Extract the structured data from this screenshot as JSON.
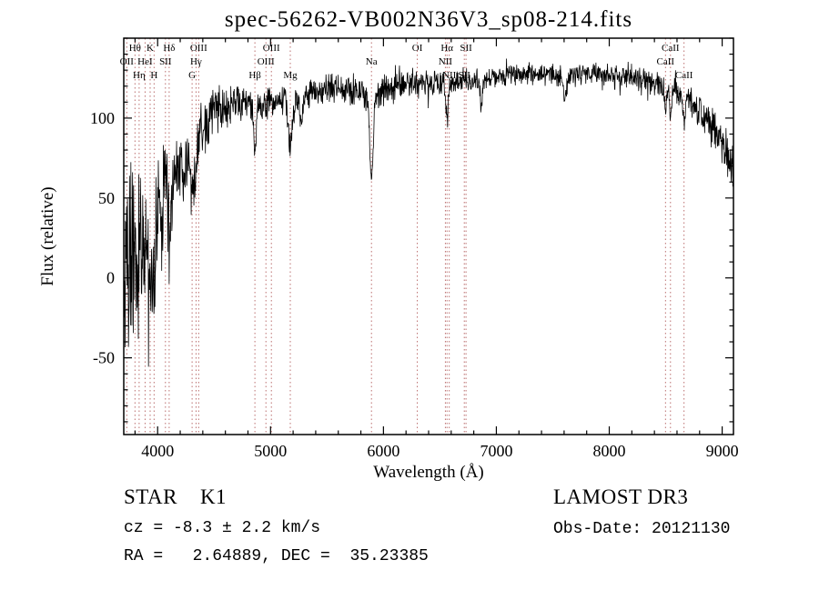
{
  "title": "spec-56262-VB002N36V3_sp08-214.fits",
  "footer": {
    "class_label": "STAR    K1",
    "survey": "LAMOST DR3",
    "cz": "cz = -8.3 ± 2.2 km/s",
    "obs_date": "Obs-Date: 20121130",
    "coords": "RA =   2.64889, DEC =  35.23385"
  },
  "chart_data": {
    "type": "line",
    "title": "spec-56262-VB002N36V3_sp08-214.fits",
    "xlabel": "Wavelength (Å)",
    "ylabel": "Flux (relative)",
    "xlim": [
      3700,
      9100
    ],
    "ylim": [
      -98,
      150
    ],
    "x_major_ticks": [
      4000,
      5000,
      6000,
      7000,
      8000,
      9000
    ],
    "x_minor_step": 200,
    "y_major_ticks": [
      -50,
      0,
      50,
      100
    ],
    "y_minor_step": 10,
    "grid": false,
    "legend": "none",
    "series_name": "flux",
    "series_color": "#000000",
    "marker_line_color": "#b46060",
    "marker_label_color": "#5e1f1f",
    "spectral_lines": [
      {
        "wavelength": 3727,
        "label": "OII",
        "row": 2
      },
      {
        "wavelength": 3799,
        "label": "Hθ",
        "row": 1
      },
      {
        "wavelength": 3836,
        "label": "Hη",
        "row": 3
      },
      {
        "wavelength": 3889,
        "label": "HeI",
        "row": 2
      },
      {
        "wavelength": 3934,
        "label": "K",
        "row": 1
      },
      {
        "wavelength": 3968,
        "label": "H",
        "row": 3
      },
      {
        "wavelength": 4069,
        "label": "SII",
        "row": 2
      },
      {
        "wavelength": 4102,
        "label": "Hδ",
        "row": 1
      },
      {
        "wavelength": 4305,
        "label": "G",
        "row": 3
      },
      {
        "wavelength": 4340,
        "label": "Hγ",
        "row": 2
      },
      {
        "wavelength": 4363,
        "label": "OIII",
        "row": 1
      },
      {
        "wavelength": 4861,
        "label": "Hβ",
        "row": 3
      },
      {
        "wavelength": 4959,
        "label": "OIII",
        "row": 2
      },
      {
        "wavelength": 5007,
        "label": "OIII",
        "row": 1
      },
      {
        "wavelength": 5175,
        "label": "Mg",
        "row": 3
      },
      {
        "wavelength": 5894,
        "label": "Na",
        "row": 2
      },
      {
        "wavelength": 6300,
        "label": "OI",
        "row": 1
      },
      {
        "wavelength": 6548,
        "label": "NII",
        "row": 2
      },
      {
        "wavelength": 6563,
        "label": "Hα",
        "row": 1
      },
      {
        "wavelength": 6583,
        "label": "NII",
        "row": 3
      },
      {
        "wavelength": 6716,
        "label": "SII",
        "row": 3
      },
      {
        "wavelength": 6731,
        "label": "SII",
        "row": 1
      },
      {
        "wavelength": 8498,
        "label": "CaII",
        "row": 2
      },
      {
        "wavelength": 8542,
        "label": "CaII",
        "row": 1
      },
      {
        "wavelength": 8662,
        "label": "CaII",
        "row": 3
      }
    ],
    "continuum": [
      [
        3700,
        10
      ],
      [
        3800,
        15
      ],
      [
        3900,
        25
      ],
      [
        4000,
        40
      ],
      [
        4100,
        55
      ],
      [
        4200,
        70
      ],
      [
        4300,
        80
      ],
      [
        4400,
        95
      ],
      [
        4500,
        105
      ],
      [
        4700,
        110
      ],
      [
        4900,
        108
      ],
      [
        5100,
        112
      ],
      [
        5300,
        115
      ],
      [
        5500,
        118
      ],
      [
        5700,
        118
      ],
      [
        5900,
        115
      ],
      [
        6100,
        120
      ],
      [
        6300,
        122
      ],
      [
        6500,
        122
      ],
      [
        6700,
        123
      ],
      [
        7000,
        126
      ],
      [
        7300,
        128
      ],
      [
        7600,
        126
      ],
      [
        7900,
        128
      ],
      [
        8200,
        126
      ],
      [
        8400,
        122
      ],
      [
        8600,
        118
      ],
      [
        8800,
        105
      ],
      [
        9000,
        85
      ],
      [
        9100,
        68
      ]
    ],
    "noise": {
      "seed": 20121130,
      "spike_probability": 0.03,
      "spike_scale": 1.9,
      "envelope": [
        [
          3700,
          70
        ],
        [
          3800,
          65
        ],
        [
          3900,
          55
        ],
        [
          4000,
          45
        ],
        [
          4100,
          35
        ],
        [
          4200,
          28
        ],
        [
          4400,
          20
        ],
        [
          4600,
          15
        ],
        [
          5000,
          12
        ],
        [
          5500,
          10
        ],
        [
          6000,
          12
        ],
        [
          6500,
          10
        ],
        [
          7000,
          8
        ],
        [
          7500,
          8
        ],
        [
          8000,
          8
        ],
        [
          8500,
          9
        ],
        [
          8800,
          12
        ],
        [
          9000,
          15
        ],
        [
          9100,
          18
        ]
      ]
    },
    "absorption_dips": [
      {
        "wavelength": 3934,
        "depth": 45,
        "sigma": 12
      },
      {
        "wavelength": 3968,
        "depth": 45,
        "sigma": 12
      },
      {
        "wavelength": 4102,
        "depth": 30,
        "sigma": 10
      },
      {
        "wavelength": 4227,
        "depth": 20,
        "sigma": 10
      },
      {
        "wavelength": 4305,
        "depth": 25,
        "sigma": 18
      },
      {
        "wavelength": 4340,
        "depth": 22,
        "sigma": 10
      },
      {
        "wavelength": 4861,
        "depth": 28,
        "sigma": 12
      },
      {
        "wavelength": 5175,
        "depth": 28,
        "sigma": 20
      },
      {
        "wavelength": 5270,
        "depth": 18,
        "sigma": 14
      },
      {
        "wavelength": 5894,
        "depth": 52,
        "sigma": 16
      },
      {
        "wavelength": 6563,
        "depth": 22,
        "sigma": 12
      },
      {
        "wavelength": 6868,
        "depth": 16,
        "sigma": 10
      },
      {
        "wavelength": 7605,
        "depth": 14,
        "sigma": 14
      },
      {
        "wavelength": 8498,
        "depth": 14,
        "sigma": 9
      },
      {
        "wavelength": 8542,
        "depth": 18,
        "sigma": 10
      },
      {
        "wavelength": 8662,
        "depth": 16,
        "sigma": 10
      }
    ],
    "sample_step": 3
  }
}
